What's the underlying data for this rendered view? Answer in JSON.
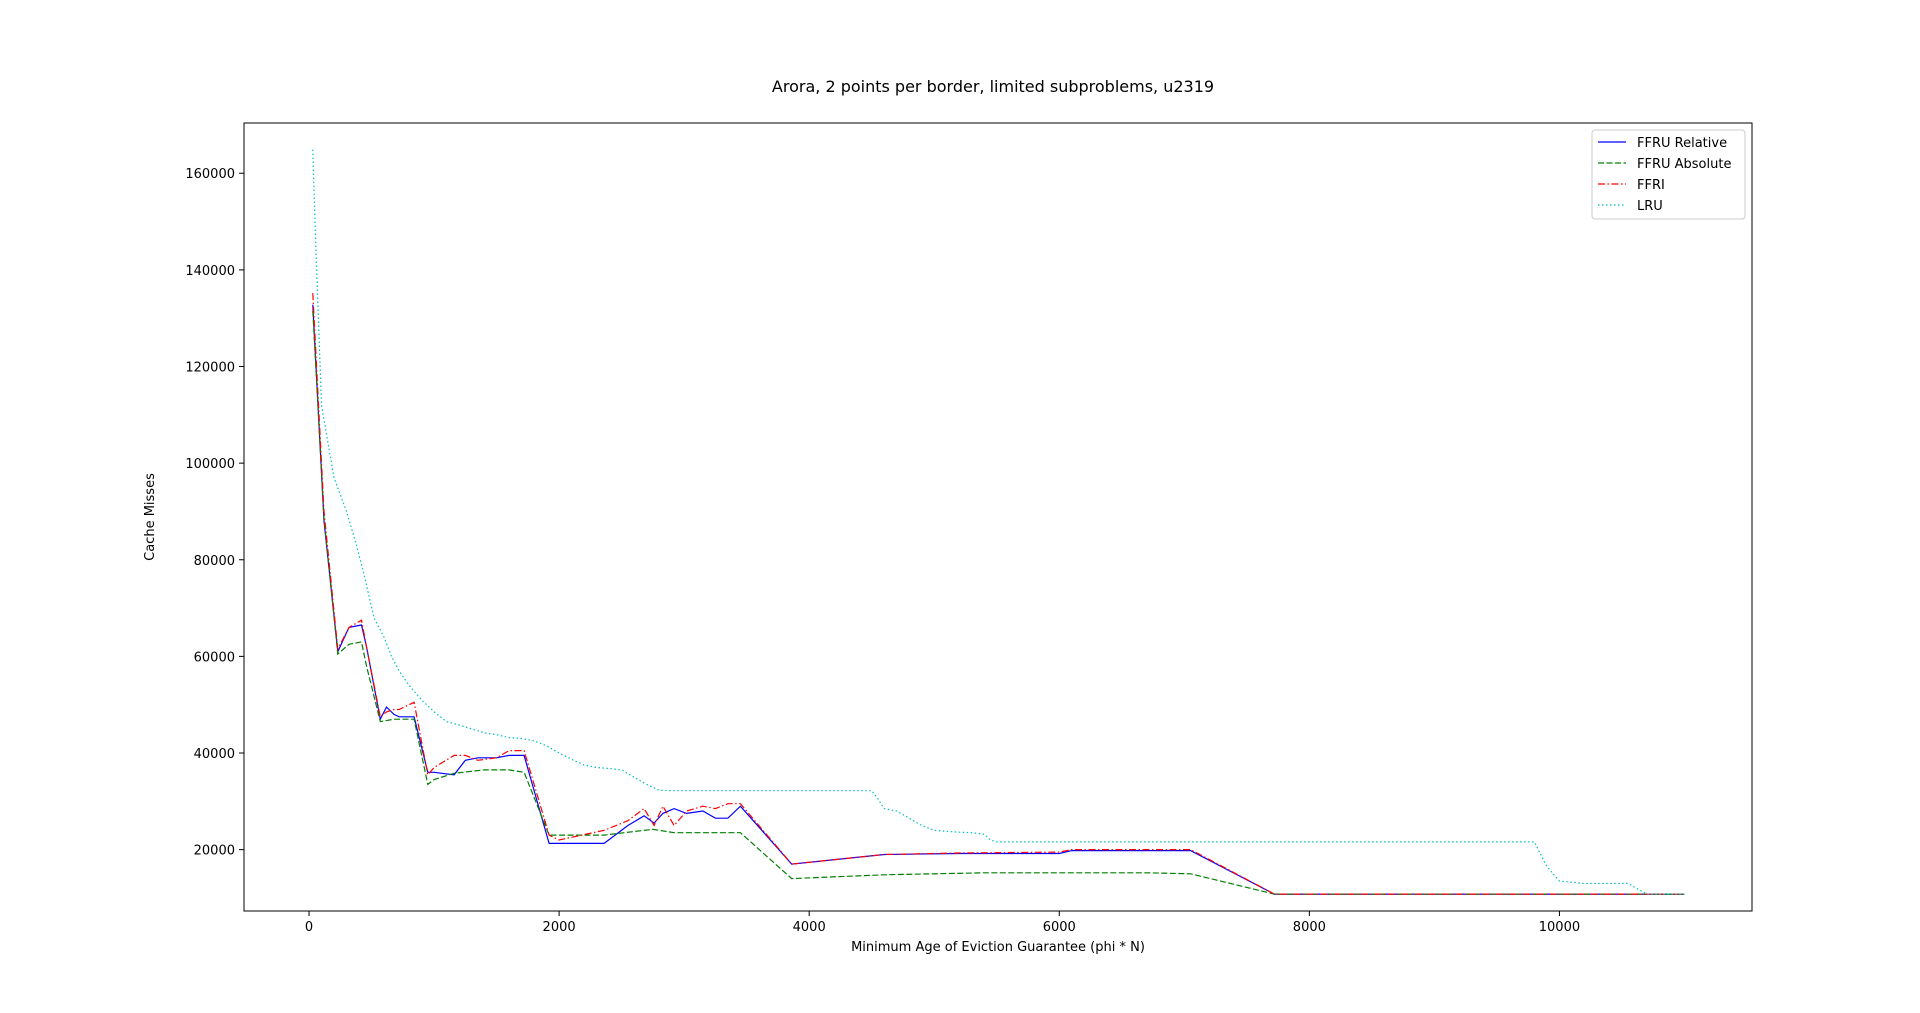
{
  "chart_data": {
    "type": "line",
    "title": "Arora, 2 points per border, limited subproblems, u2319",
    "xlabel": "Minimum Age of Eviction Guarantee (phi * N)",
    "ylabel": "Cache Misses",
    "xlim": [
      -520,
      11540
    ],
    "ylim": [
      7300,
      170400
    ],
    "xticks": [
      0,
      2000,
      4000,
      6000,
      8000,
      10000
    ],
    "xtick_labels": [
      "0",
      "2000",
      "4000",
      "6000",
      "8000",
      "10000"
    ],
    "yticks": [
      20000,
      40000,
      60000,
      80000,
      100000,
      120000,
      140000,
      160000
    ],
    "ytick_labels": [
      "20000",
      "40000",
      "60000",
      "80000",
      "100000",
      "120000",
      "140000",
      "160000"
    ],
    "grid": false,
    "legend_position": "top-right",
    "series": [
      {
        "name": "FFRU Relative",
        "color": "#0000ff",
        "dash": "solid",
        "x": [
          30,
          120,
          230,
          320,
          420,
          460,
          570,
          620,
          680,
          720,
          840,
          950,
          1000,
          1160,
          1250,
          1350,
          1500,
          1600,
          1720,
          1920,
          1960,
          2360,
          2550,
          2680,
          2760,
          2830,
          2920,
          3020,
          3150,
          3250,
          3350,
          3450,
          3860,
          4600,
          5200,
          6000,
          6100,
          6700,
          7050,
          7720,
          8500,
          9500,
          11000
        ],
        "y": [
          132800,
          88000,
          61000,
          66000,
          66500,
          62000,
          47000,
          49500,
          48000,
          47500,
          47500,
          36000,
          36000,
          35500,
          38500,
          39000,
          39000,
          39500,
          39500,
          21300,
          21300,
          21300,
          25000,
          27000,
          25500,
          27500,
          28500,
          27500,
          28000,
          26500,
          26500,
          29000,
          17000,
          19000,
          19200,
          19200,
          19800,
          19800,
          19800,
          10800,
          10800,
          10800,
          10800
        ]
      },
      {
        "name": "FFRU Absolute",
        "color": "#008000",
        "dash": "dashed",
        "x": [
          30,
          120,
          230,
          320,
          420,
          460,
          570,
          680,
          840,
          950,
          1000,
          1160,
          1400,
          1600,
          1720,
          1920,
          2360,
          2750,
          2920,
          3150,
          3450,
          3860,
          4600,
          5400,
          6000,
          6700,
          7050,
          7720,
          8500,
          9500,
          11000
        ],
        "y": [
          131500,
          88500,
          60500,
          62500,
          63000,
          58000,
          46500,
          47000,
          47000,
          33500,
          34500,
          35800,
          36500,
          36500,
          36000,
          23000,
          23000,
          24200,
          23500,
          23500,
          23500,
          14000,
          14800,
          15200,
          15200,
          15200,
          15000,
          10800,
          10800,
          10800,
          10800
        ]
      },
      {
        "name": "FFRI",
        "color": "#ff0000",
        "dash": "dashdot",
        "x": [
          30,
          120,
          230,
          320,
          420,
          460,
          570,
          620,
          680,
          720,
          840,
          950,
          1000,
          1160,
          1250,
          1350,
          1500,
          1600,
          1720,
          1920,
          2000,
          2360,
          2550,
          2680,
          2760,
          2830,
          2920,
          3020,
          3150,
          3250,
          3350,
          3450,
          3860,
          4600,
          5200,
          6000,
          6100,
          6700,
          7050,
          7720,
          8500,
          9500,
          11000
        ],
        "y": [
          135200,
          90000,
          61500,
          66000,
          67500,
          62000,
          47500,
          48500,
          49000,
          49000,
          50500,
          35500,
          37000,
          39500,
          39500,
          38500,
          39000,
          40500,
          40500,
          23000,
          22000,
          24000,
          26000,
          28500,
          25000,
          29000,
          25000,
          28000,
          29000,
          28500,
          29500,
          29500,
          17000,
          19000,
          19300,
          19500,
          20000,
          20000,
          20000,
          10800,
          10800,
          10800,
          10800
        ]
      },
      {
        "name": "LRU",
        "color": "#00bfbf",
        "dash": "dotted",
        "x": [
          30,
          50,
          100,
          200,
          300,
          380,
          440,
          520,
          600,
          660,
          720,
          800,
          900,
          1000,
          1100,
          1200,
          1300,
          1400,
          1500,
          1600,
          1700,
          1800,
          1900,
          2000,
          2100,
          2200,
          2300,
          2400,
          2500,
          2600,
          2700,
          2800,
          2900,
          3000,
          4500,
          4550,
          4600,
          4700,
          4800,
          4900,
          5000,
          5100,
          5200,
          5300,
          5400,
          5450,
          5500,
          6000,
          7000,
          8000,
          9000,
          9800,
          9850,
          9900,
          10000,
          10200,
          10550,
          10650,
          10700,
          11000
        ],
        "y": [
          164900,
          148000,
          112000,
          97000,
          90000,
          83000,
          77000,
          68000,
          64000,
          60000,
          57000,
          54000,
          51000,
          48500,
          46500,
          45800,
          45000,
          44200,
          43800,
          43200,
          43000,
          42500,
          41500,
          40000,
          38700,
          37500,
          37000,
          36800,
          36500,
          35000,
          33500,
          32300,
          32200,
          32200,
          32200,
          30500,
          28500,
          28000,
          26500,
          25000,
          24000,
          23800,
          23600,
          23500,
          23200,
          22000,
          21600,
          21600,
          21600,
          21600,
          21600,
          21600,
          19000,
          16500,
          13500,
          13000,
          13000,
          11500,
          10800,
          10800
        ]
      }
    ]
  }
}
